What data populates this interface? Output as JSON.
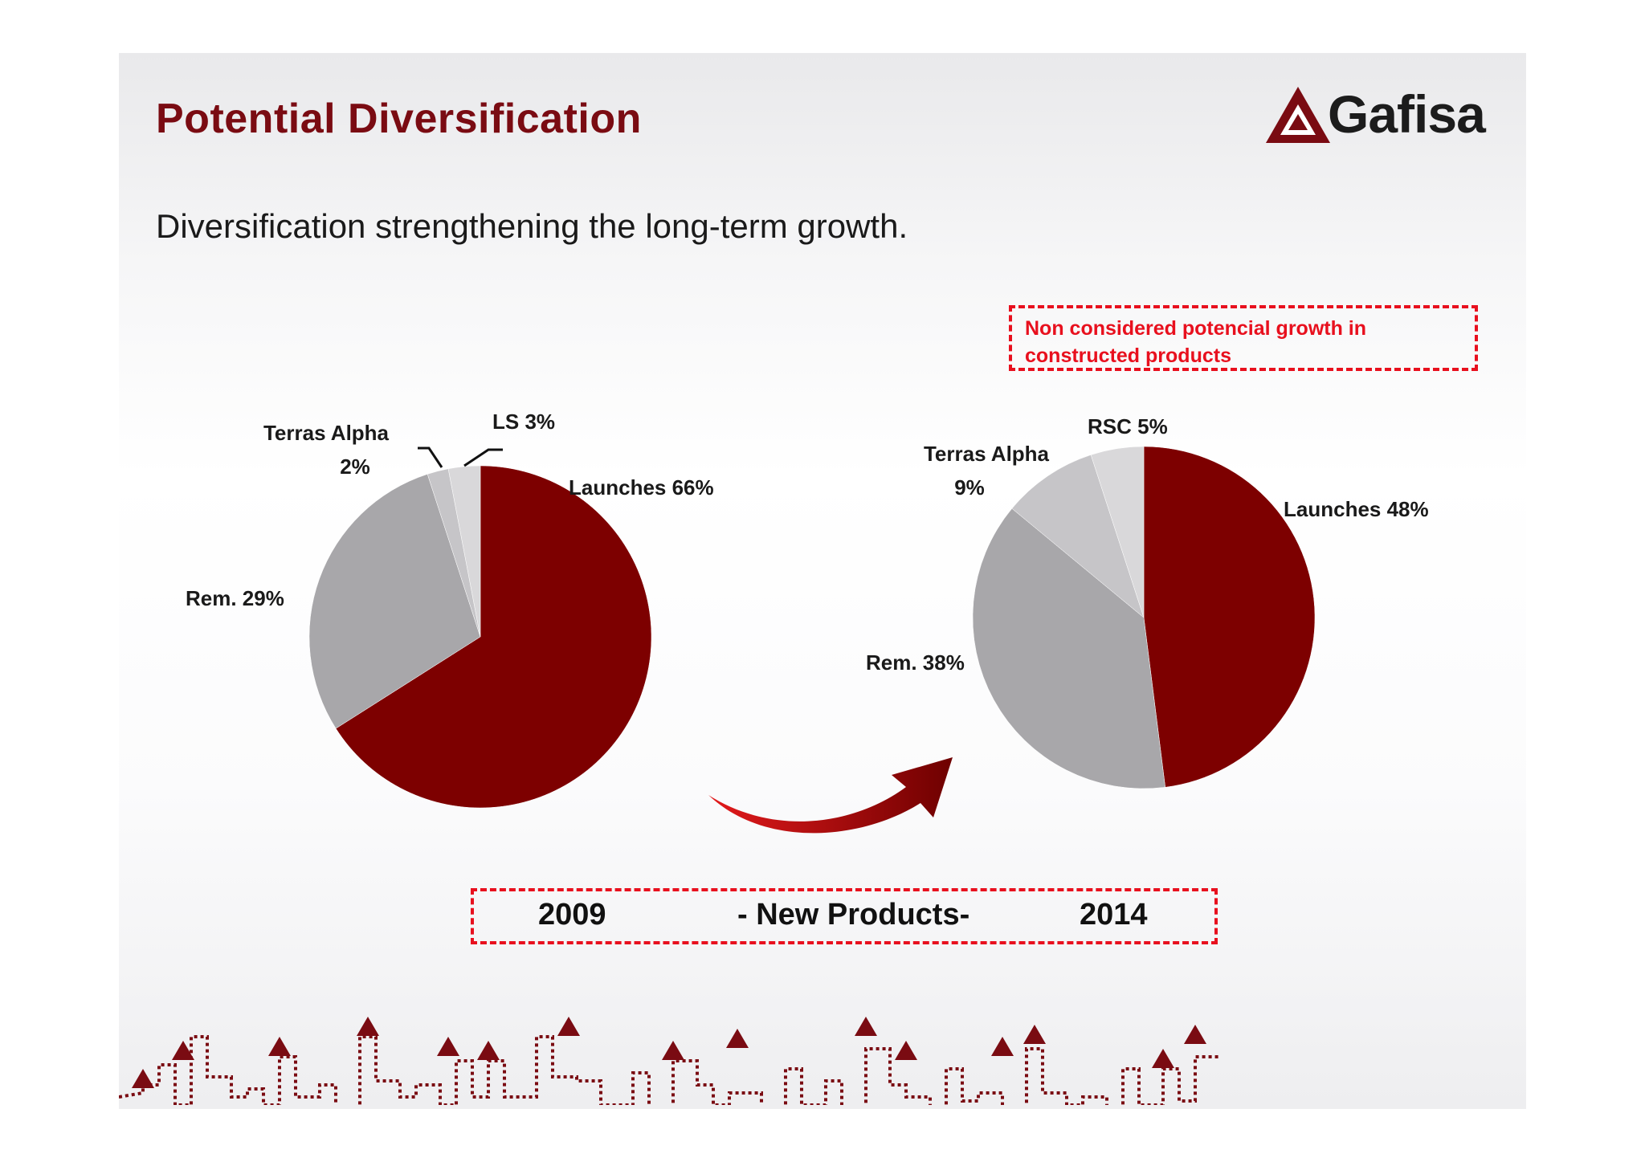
{
  "slide": {
    "title": "Potential Diversification",
    "subtitle": "Diversification strengthening the long-term growth.",
    "logo_text": "Gafisa",
    "note": "Non considered  potencial  growth in constructed products",
    "note_line1": "Non considered  potencial  growth in",
    "note_line2": "constructed products",
    "timeline": {
      "start": "2009",
      "middle": "- New Products-",
      "end": "2014"
    }
  },
  "colors": {
    "brand": "#7a0b12",
    "launches": "#7d0000",
    "rem": "#a8a7aa",
    "terras": "#c6c5c8",
    "small": "#d9d8da",
    "accent_red": "#e8101e"
  },
  "chart_data": [
    {
      "type": "pie",
      "year": "2009",
      "slices": [
        {
          "name": "Launches",
          "value": 66,
          "label": "Launches 66%",
          "color": "#7d0000"
        },
        {
          "name": "Rem.",
          "value": 29,
          "label": "Rem. 29%",
          "color": "#a8a7aa"
        },
        {
          "name": "Terras Alpha",
          "value": 2,
          "label_lines": [
            "Terras Alpha",
            "2%"
          ],
          "color": "#c6c5c8"
        },
        {
          "name": "LS",
          "value": 3,
          "label": "LS 3%",
          "color": "#d9d8da"
        }
      ]
    },
    {
      "type": "pie",
      "year": "2014",
      "slices": [
        {
          "name": "Launches",
          "value": 48,
          "label": "Launches 48%",
          "color": "#7d0000"
        },
        {
          "name": "Rem.",
          "value": 38,
          "label": "Rem. 38%",
          "color": "#a8a7aa"
        },
        {
          "name": "Terras Alpha",
          "value": 9,
          "label_lines": [
            "Terras Alpha",
            "9%"
          ],
          "color": "#c6c5c8"
        },
        {
          "name": "RSC",
          "value": 5,
          "label": "RSC 5%",
          "color": "#d9d8da"
        }
      ]
    }
  ]
}
